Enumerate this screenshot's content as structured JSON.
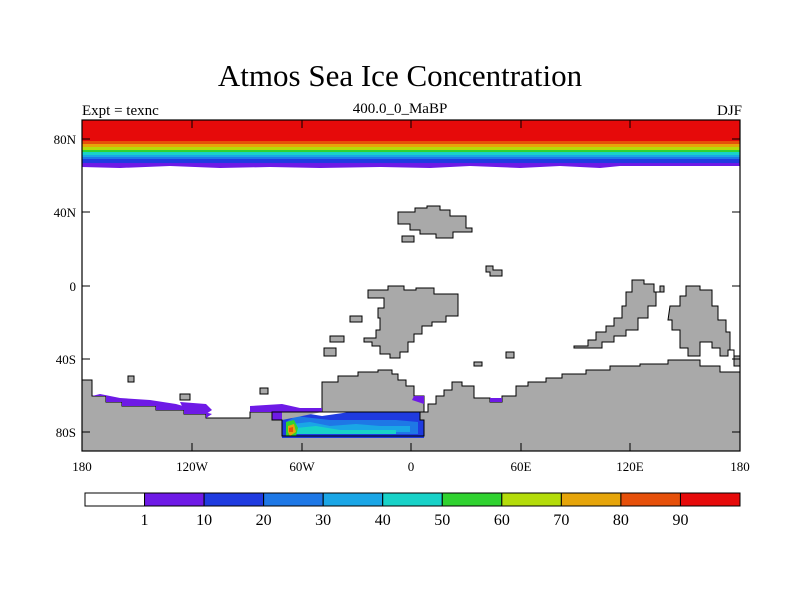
{
  "title": "Atmos Sea Ice Concentration",
  "subtitle_left": "Expt = texnc",
  "subtitle_center": "400.0_0_MaBP",
  "subtitle_right": "DJF",
  "lat_labels": [
    "80N",
    "40N",
    "0",
    "40S",
    "80S"
  ],
  "lon_labels": [
    "180",
    "120W",
    "60W",
    "0",
    "60E",
    "120E",
    "180"
  ],
  "colorbar": {
    "labels": [
      "1",
      "10",
      "20",
      "30",
      "40",
      "50",
      "60",
      "70",
      "80",
      "90"
    ],
    "colors": [
      "#ffffff",
      "#6e1ae6",
      "#1f3be0",
      "#1e78e6",
      "#1aa6e6",
      "#18d2c8",
      "#30d230",
      "#b4dc0a",
      "#e6a50a",
      "#e6500a",
      "#e60a0a"
    ]
  },
  "land_color": "#a9a9a9"
}
